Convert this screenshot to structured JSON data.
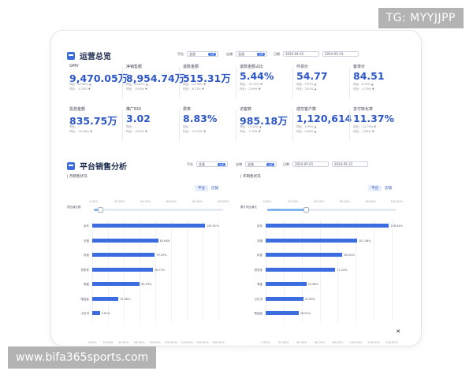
{
  "watermark_top": "TG: MYYJJPP",
  "watermark_bottom": "www.bifa365sports.com",
  "overview": {
    "title": "运营总览",
    "filters": {
      "platform_label": "平台",
      "platform_value": "全选",
      "platform_tag": "全部",
      "store_label": "店铺",
      "store_value": "全选",
      "store_tag": "全部",
      "date_label": "日期",
      "date_start": "2024-04-01",
      "date_end": "2024-05-14"
    },
    "kpis": [
      {
        "label": "GMV",
        "value": "9,470.05万",
        "sub1": "同比：12.60% ▲",
        "sub2": "环比：-4.15% ▼"
      },
      {
        "label": "净销售额",
        "value": "8,954.74万",
        "sub1": "同比：15.63% ▲",
        "sub2": "环比：-5.90% ▼"
      },
      {
        "label": "退款金额",
        "value": "515.31万",
        "sub1": "同比：-22.58% ▼",
        "sub2": "环比：-6.71% ▼"
      },
      {
        "label": "退款金额占比",
        "value": "5.44%",
        "sub1": "同比：-31.25% ▼",
        "sub2": "环比：-2.99% ▼"
      },
      {
        "label": "件单价",
        "value": "54.77",
        "sub1": "同比：9.97% ▲",
        "sub2": "环比：3.61% ▲"
      },
      {
        "label": "客单价",
        "value": "84.51",
        "sub1": "同比：8.18% ▲",
        "sub2": "环比：-4.79% ▼"
      },
      {
        "label": "投放金额",
        "value": "835.75万",
        "sub1": "同比：--",
        "sub2": "环比：-19.46% ▼"
      },
      {
        "label": "推广ROI",
        "value": "3.02",
        "sub1": "同比：--",
        "sub2": "环比：-3.90% ▼"
      },
      {
        "label": "费率",
        "value": "8.83%",
        "sub1": "同比：--",
        "sub2": "环比：-15.09% ▼"
      },
      {
        "label": "访客数",
        "value": "985.18万",
        "sub1": "同比：15.24% ▲",
        "sub2": "环比：-2.78% ▼"
      },
      {
        "label": "成交客户数",
        "value": "1,120,614",
        "sub1": "同比：4.99% ▲",
        "sub2": "环比：0.69% ▲"
      },
      {
        "label": "支付转化率",
        "value": "11.37%",
        "sub1": "同比：-12.70% ▼",
        "sub2": "环比：-3.65% ▼"
      }
    ]
  },
  "sales": {
    "title": "平台销售分析",
    "filters": {
      "platform_label": "平台",
      "platform_value": "全选",
      "platform_tag": "全部",
      "store_label": "店铺",
      "store_value": "全选",
      "store_tag": "全部",
      "date_label": "日期",
      "date_start": "2024-05-01",
      "date_end": "2024-05-31"
    },
    "left_panel": {
      "title": "| 月销售状况",
      "toggle_on": "平台",
      "toggle_off": "店铺",
      "ylabel": "同比增长额",
      "scale": [
        "0.00%",
        "20.00%",
        "40.00%",
        "60.00%",
        "80.00%",
        "100.00%"
      ],
      "slider_fraction": 0.05,
      "xaxis": [
        "0.00%",
        "20.00%",
        "40.00%",
        "60.00%",
        "80.00%",
        "100.00%",
        "120.00%",
        "140.00%",
        "160.00%"
      ]
    },
    "right_panel": {
      "title": "| 年销售状况",
      "toggle_on": "平台",
      "toggle_off": "店铺",
      "ylabel": "累计同比增长",
      "scale": [
        "0.00%",
        "20.00%",
        "40.00%",
        "60.00%",
        "80.00%",
        "100.00%"
      ],
      "slider_fraction": 0.3,
      "xaxis": [
        "0.00%",
        "20.00%",
        "40.00%",
        "60.00%",
        "80.00%",
        "100.00%",
        "120.00%",
        "140.00%"
      ]
    }
  },
  "chart_data": [
    {
      "type": "bar",
      "orientation": "horizontal",
      "categories": [
        "京东",
        "天猫",
        "抖音",
        "拼多多",
        "淘宝",
        "唯品会",
        "小红书"
      ],
      "values": [
        142.91,
        83.68,
        79.29,
        76.71,
        60.09,
        33.06,
        9.61
      ],
      "xlim": [
        0,
        160
      ],
      "grid": true
    },
    {
      "type": "bar",
      "orientation": "horizontal",
      "categories": [
        "京东",
        "天猫",
        "抖音",
        "拼多多",
        "淘宝",
        "小红书",
        "唯品会"
      ],
      "values": [
        136.84,
        101.46,
        85.3,
        77.24,
        45.08,
        41.69,
        36.52
      ],
      "xlim": [
        0,
        140
      ],
      "grid": true
    }
  ]
}
